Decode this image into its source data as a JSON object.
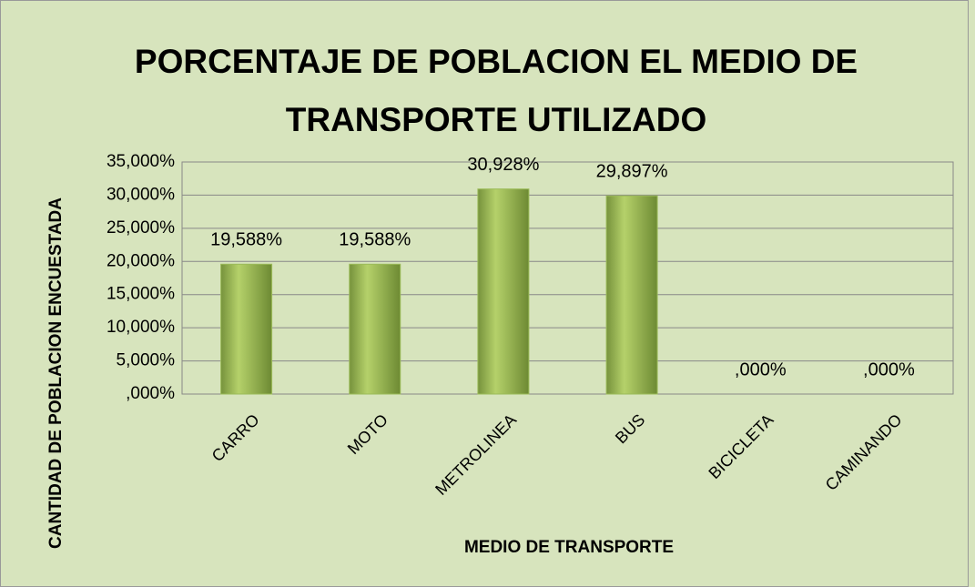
{
  "chart_data": {
    "type": "bar",
    "title": "PORCENTAJE DE POBLACION EL MEDIO DE TRANSPORTE UTILIZADO",
    "x_label": "MEDIO DE TRANSPORTE",
    "y_label": "CANTIDAD DE POBLACION ENCUESTADA",
    "categories": [
      "CARRO",
      "MOTO",
      "METROLINEA",
      "BUS",
      "BICICLETA",
      "CAMINANDO"
    ],
    "values": [
      19.588,
      19.588,
      30.928,
      29.897,
      0,
      0
    ],
    "value_labels": [
      "19,588%",
      "19,588%",
      "30,928%",
      "29,897%",
      ",000%",
      ",000%"
    ],
    "color": "#9bbb59",
    "ylim": [
      0,
      35
    ],
    "yticks": [
      {
        "value": 0,
        "label": ",000%"
      },
      {
        "value": 5,
        "label": "5,000%"
      },
      {
        "value": 10,
        "label": "10,000%"
      },
      {
        "value": 15,
        "label": "15,000%"
      },
      {
        "value": 20,
        "label": "20,000%"
      },
      {
        "value": 25,
        "label": "25,000%"
      },
      {
        "value": 30,
        "label": "30,000%"
      },
      {
        "value": 35,
        "label": "35,000%"
      }
    ],
    "grid": true
  }
}
